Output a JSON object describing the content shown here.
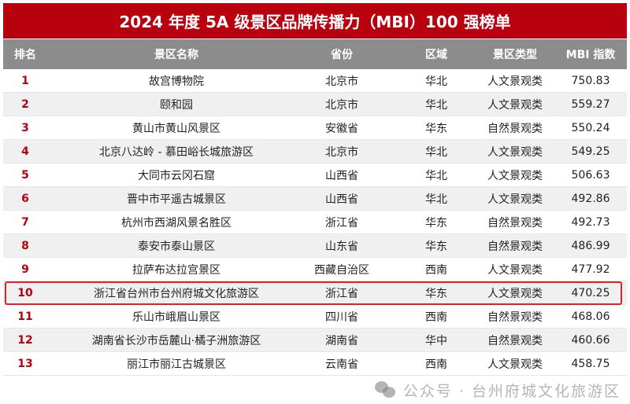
{
  "title": "2024 年度 5A 级景区品牌传播力（MBI）100 强榜单",
  "columns": [
    "排名",
    "景区名称",
    "省份",
    "区域",
    "景区类型",
    "MBI 指数"
  ],
  "rows": [
    [
      "1",
      "故宫博物院",
      "北京市",
      "华北",
      "人文景观类",
      "750.83"
    ],
    [
      "2",
      "颐和园",
      "北京市",
      "华北",
      "人文景观类",
      "559.27"
    ],
    [
      "3",
      "黄山市黄山风景区",
      "安徽省",
      "华东",
      "自然景观类",
      "550.24"
    ],
    [
      "4",
      "北京八达岭 - 慕田峪长城旅游区",
      "北京市",
      "华北",
      "人文景观类",
      "549.25"
    ],
    [
      "5",
      "大同市云冈石窟",
      "山西省",
      "华北",
      "人文景观类",
      "506.63"
    ],
    [
      "6",
      "晋中市平遥古城景区",
      "山西省",
      "华北",
      "人文景观类",
      "492.86"
    ],
    [
      "7",
      "杭州市西湖风景名胜区",
      "浙江省",
      "华东",
      "自然景观类",
      "492.73"
    ],
    [
      "8",
      "泰安市泰山景区",
      "山东省",
      "华东",
      "自然景观类",
      "486.99"
    ],
    [
      "9",
      "拉萨布达拉宫景区",
      "西藏自治区",
      "西南",
      "人文景观类",
      "477.92"
    ],
    [
      "10",
      "浙江省台州市台州府城文化旅游区",
      "浙江省",
      "华东",
      "人文景观类",
      "470.25"
    ],
    [
      "11",
      "乐山市峨眉山景区",
      "四川省",
      "西南",
      "自然景观类",
      "468.06"
    ],
    [
      "12",
      "湖南省长沙市岳麓山·橘子洲旅游区",
      "湖南省",
      "华中",
      "自然景观类",
      "460.66"
    ],
    [
      "13",
      "丽江市丽江古城景区",
      "云南省",
      "西南",
      "人文景观类",
      "458.75"
    ]
  ],
  "highlighted_rank": "10",
  "watermark": "公众号 · 台州府城文化旅游区",
  "watermark_icon": "wechat-icon",
  "colors": {
    "title_bg": "#b8000e",
    "header_bg": "#8c8c8c",
    "highlight_border": "#e0202a"
  }
}
